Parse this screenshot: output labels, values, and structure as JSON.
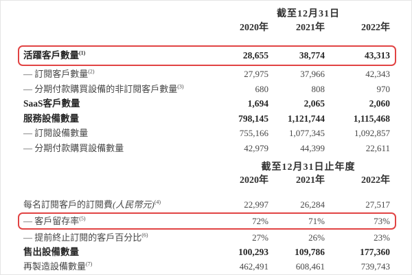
{
  "colors": {
    "highlight_border": "#e14343",
    "text_regular": "#474747",
    "text_bold": "#262626",
    "background": "#ffffff"
  },
  "table1": {
    "period_header": "截至12月31日",
    "year_columns": [
      "2020年",
      "2021年",
      "2022年"
    ],
    "rows": [
      {
        "label": "活躍客戶數量",
        "sup": "(1)",
        "values": [
          "28,655",
          "38,774",
          "43,313"
        ]
      },
      {
        "label": "— 訂閱客戶數量",
        "sup": "(2)",
        "values": [
          "27,975",
          "37,966",
          "42,343"
        ]
      },
      {
        "label": "— 分期付款購買設備的非訂閱客戶數量",
        "sup": "(3)",
        "values": [
          "680",
          "808",
          "970"
        ]
      },
      {
        "label": "SaaS客戶數量",
        "sup": "",
        "values": [
          "1,694",
          "2,065",
          "2,060"
        ]
      },
      {
        "label": "服務設備數量",
        "sup": "",
        "values": [
          "798,145",
          "1,121,744",
          "1,115,468"
        ]
      },
      {
        "label": "— 訂閱設備數量",
        "sup": "",
        "values": [
          "755,166",
          "1,077,345",
          "1,092,857"
        ]
      },
      {
        "label": "— 分期付款購買設備數量",
        "sup": "",
        "values": [
          "42,979",
          "44,399",
          "22,611"
        ]
      }
    ]
  },
  "table2": {
    "period_header": "截至12月31日止年度",
    "year_columns": [
      "2020年",
      "2021年",
      "2022年"
    ],
    "rows": [
      {
        "label": "每名訂閱客戶的訂閱費",
        "label_italic": "(人民幣元)",
        "sup": "(4)",
        "values": [
          "22,997",
          "26,284",
          "27,517"
        ]
      },
      {
        "label": "— 客戶留存率",
        "sup": "(5)",
        "values": [
          "72%",
          "71%",
          "73%"
        ]
      },
      {
        "label": "— 提前終止訂閱的客戶百分比",
        "sup": "(6)",
        "values": [
          "27%",
          "26%",
          "23%"
        ]
      },
      {
        "label": "售出設備數量",
        "sup": "",
        "values": [
          "100,293",
          "109,786",
          "177,360"
        ]
      },
      {
        "label": "再製造設備數量",
        "sup": "(7)",
        "values": [
          "462,491",
          "608,461",
          "739,743"
        ]
      }
    ]
  }
}
